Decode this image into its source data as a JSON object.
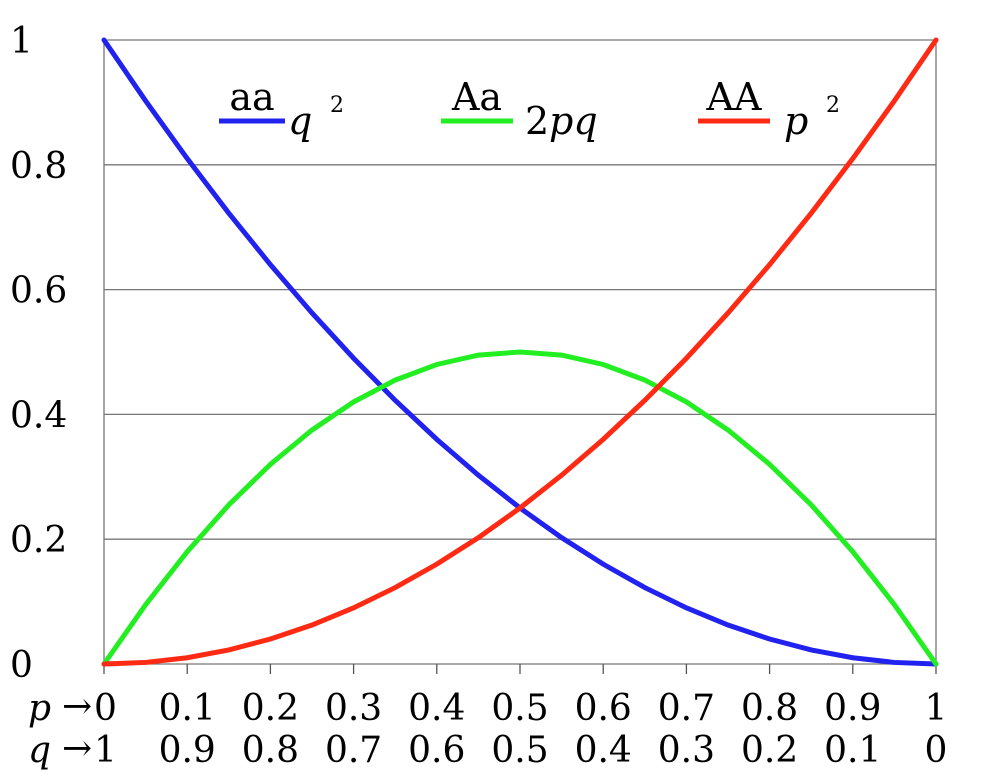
{
  "chart_data": {
    "type": "line",
    "x": [
      0,
      0.05,
      0.1,
      0.15,
      0.2,
      0.25,
      0.3,
      0.35,
      0.4,
      0.45,
      0.5,
      0.55,
      0.6,
      0.65,
      0.7,
      0.75,
      0.8,
      0.85,
      0.9,
      0.95,
      1
    ],
    "series": [
      {
        "name": "aa",
        "formula": "q",
        "formula_sup": "2",
        "color": "#2222ee",
        "values": [
          1,
          0.9025,
          0.81,
          0.7225,
          0.64,
          0.5625,
          0.49,
          0.4225,
          0.36,
          0.3025,
          0.25,
          0.2025,
          0.16,
          0.1225,
          0.09,
          0.0625,
          0.04,
          0.0225,
          0.01,
          0.0025,
          0
        ]
      },
      {
        "name": "Aa",
        "formula_num": "2",
        "formula": "pq",
        "color": "#22ee22",
        "values": [
          0,
          0.095,
          0.18,
          0.255,
          0.32,
          0.375,
          0.42,
          0.455,
          0.48,
          0.495,
          0.5,
          0.495,
          0.48,
          0.455,
          0.42,
          0.375,
          0.32,
          0.255,
          0.18,
          0.095,
          0
        ]
      },
      {
        "name": "AA",
        "formula": "p",
        "formula_sup": "2",
        "color": "#ff2a14",
        "values": [
          0,
          0.0025,
          0.01,
          0.0225,
          0.04,
          0.0625,
          0.09,
          0.1225,
          0.16,
          0.2025,
          0.25,
          0.3025,
          0.36,
          0.4225,
          0.49,
          0.5625,
          0.64,
          0.7225,
          0.81,
          0.9025,
          1
        ]
      }
    ],
    "y_ticks": [
      "0",
      "0.2",
      "0.4",
      "0.6",
      "0.8",
      "1"
    ],
    "x_axis_p": {
      "name": "p",
      "arrow": "→",
      "ticks": [
        "0",
        "0.1",
        "0.2",
        "0.3",
        "0.4",
        "0.5",
        "0.6",
        "0.7",
        "0.8",
        "0.9",
        "1"
      ]
    },
    "x_axis_q": {
      "name": "q",
      "arrow": "→",
      "ticks": [
        "1",
        "0.9",
        "0.8",
        "0.7",
        "0.6",
        "0.5",
        "0.4",
        "0.3",
        "0.2",
        "0.1",
        "0"
      ]
    },
    "xlim": [
      0,
      1
    ],
    "ylim": [
      0,
      1
    ],
    "grid": "horizontal",
    "legend_position": "top"
  }
}
